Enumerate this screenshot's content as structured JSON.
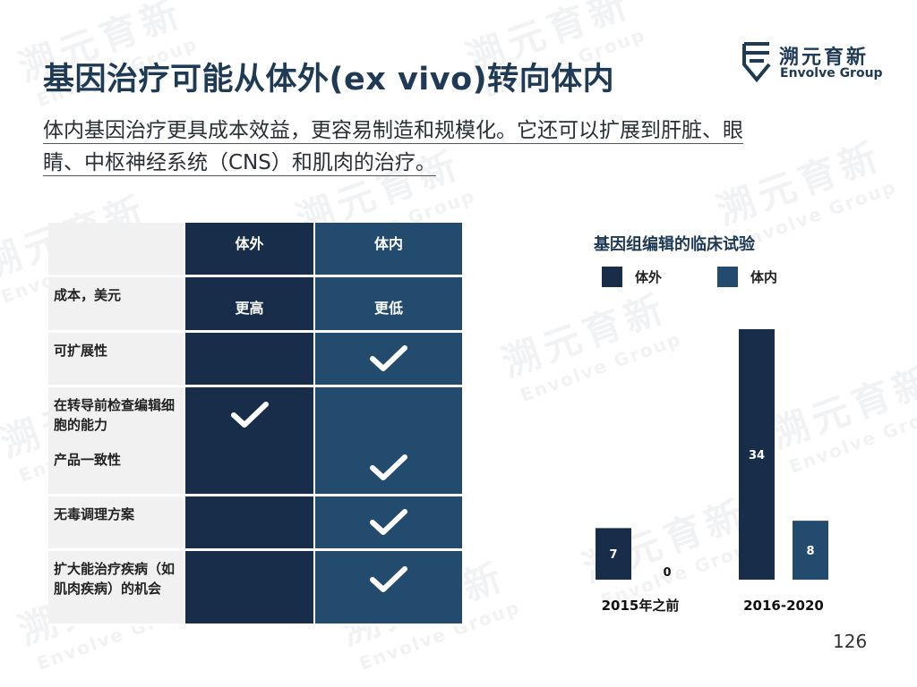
{
  "title": "基因治疗可能从体外(ex vivo)转向体内",
  "subtitle_line1": "体内基因治疗更具成本效益，更容易制造和规模化。它还可以扩展到肝脏、眼",
  "subtitle_line2": "睛、中枢神经系统（CNS）和肌肉的治疗。",
  "logo": {
    "cn": "溯元育新",
    "en": "Envolve Group"
  },
  "table": {
    "headers": [
      "",
      "体外",
      "体内"
    ],
    "rows": [
      {
        "label": "成本，美元",
        "ex_vivo": "更高",
        "in_vivo": "更低"
      },
      {
        "label": "可扩展性",
        "ex_vivo_check": false,
        "in_vivo_check": true
      },
      {
        "label": "在转导前检查编辑细胞的能力",
        "ex_vivo_check": true,
        "in_vivo_check": false
      },
      {
        "label": "产品一致性",
        "ex_vivo_check": false,
        "in_vivo_check": true
      },
      {
        "label": "无毒调理方案",
        "ex_vivo_check": false,
        "in_vivo_check": true
      },
      {
        "label": "扩大能治疗疾病（如肌肉疾病）的机会",
        "ex_vivo_check": false,
        "in_vivo_check": true
      }
    ]
  },
  "chart_data": {
    "type": "bar",
    "title": "基因组编辑的临床试验",
    "categories": [
      "2015年之前",
      "2016-2020"
    ],
    "series": [
      {
        "name": "体外",
        "values": [
          7,
          34
        ]
      },
      {
        "name": "体内",
        "values": [
          0,
          8
        ]
      }
    ],
    "ylim": [
      0,
      34
    ],
    "legend": "top-left",
    "grid": false,
    "colors": [
      "#172d4a",
      "#234b6d"
    ]
  },
  "page_number": "126",
  "colors": {
    "ex_vivo": "#172d4a",
    "in_vivo": "#234b6d",
    "title": "#1e3a55",
    "label_bg": "#f1f1f1"
  }
}
